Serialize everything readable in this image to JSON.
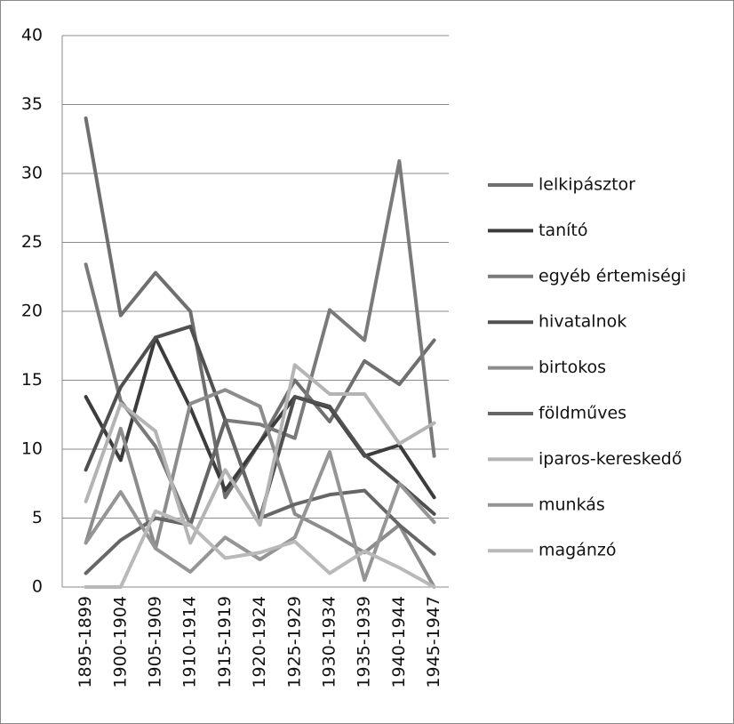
{
  "chart_data": {
    "type": "line",
    "categories": [
      "1895-1899",
      "1900-1904",
      "1905-1909",
      "1910-1914",
      "1915-1919",
      "1920-1924",
      "1925-1929",
      "1930-1934",
      "1935-1939",
      "1940-1944",
      "1945-1947"
    ],
    "series": [
      {
        "name": "lelkipásztor",
        "color": "#6f6f6f",
        "values": [
          34,
          19.7,
          22.8,
          20,
          6.5,
          10.5,
          15,
          12,
          16.4,
          14.7,
          17.9
        ]
      },
      {
        "name": "tanító",
        "color": "#3c3c3c",
        "values": [
          13.8,
          9.2,
          18.1,
          13,
          7,
          10.5,
          13.8,
          13,
          9.5,
          10.3,
          6.5
        ]
      },
      {
        "name": "egyéb értemiségi",
        "color": "#7a7a7a",
        "values": [
          23.4,
          13.5,
          10.2,
          4.5,
          12.1,
          11.8,
          10.8,
          20.1,
          17.9,
          30.9,
          9.5
        ]
      },
      {
        "name": "hivatalnok",
        "color": "#505050",
        "values": [
          8.5,
          14.5,
          18.1,
          18.9,
          12.1,
          5,
          13.8,
          13.1,
          9.6,
          7.5,
          5.3
        ]
      },
      {
        "name": "birtokos",
        "color": "#8c8c8c",
        "values": [
          3.2,
          11.5,
          2.8,
          13.3,
          14.3,
          13.1,
          5.3,
          4,
          2.5,
          4.5,
          0
        ]
      },
      {
        "name": "földműves",
        "color": "#666666",
        "values": [
          1,
          3.4,
          5,
          4.5,
          12.1,
          5,
          6,
          6.7,
          7,
          4.5,
          2.4
        ]
      },
      {
        "name": "iparos-kereskedő",
        "color": "#b4b4b4",
        "values": [
          6.2,
          13.3,
          11.3,
          3.2,
          8.5,
          4.5,
          16.1,
          14,
          14,
          10.4,
          11.9
        ]
      },
      {
        "name": "munkás",
        "color": "#959595",
        "values": [
          3.2,
          6.9,
          2.8,
          1.1,
          3.6,
          2,
          3.6,
          9.8,
          0.5,
          7.5,
          4.7
        ]
      },
      {
        "name": "magánzó",
        "color": "#b9b9b9",
        "values": [
          0,
          0,
          5.5,
          4.5,
          2.1,
          2.5,
          3.3,
          1,
          2.6,
          1.4,
          0
        ]
      }
    ],
    "ylim": [
      0,
      40
    ],
    "yticks": [
      0,
      5,
      10,
      15,
      20,
      25,
      30,
      35,
      40
    ],
    "grid": true
  }
}
